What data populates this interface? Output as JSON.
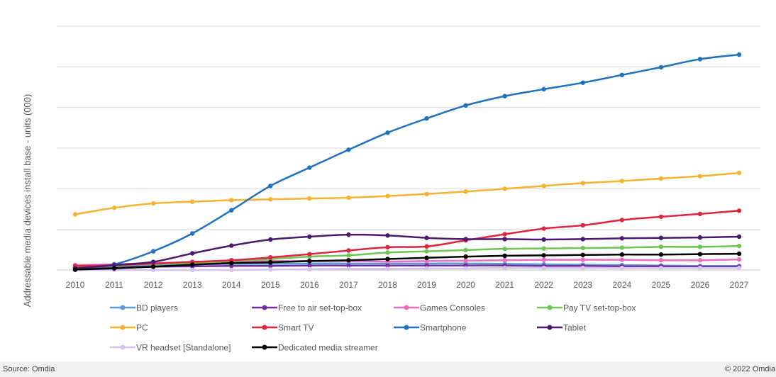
{
  "colors": {
    "grid": "#d9d9d9",
    "axis": "#bfbfbf",
    "background": "#ffffff"
  },
  "footer": {
    "source": "Source: Omdia",
    "copyright": "© 2022 Omdia"
  },
  "chart_data": {
    "type": "line",
    "title": "",
    "xlabel": "",
    "ylabel": "Addressable media devices install base - units (000)",
    "x": [
      "2010",
      "2011",
      "2012",
      "2013",
      "2014",
      "2015",
      "2016",
      "2017",
      "2018",
      "2019",
      "2020",
      "2021",
      "2022",
      "2023",
      "2024",
      "2025",
      "2026",
      "2027"
    ],
    "ylim": [
      0,
      6
    ],
    "y_ticks_labeled": false,
    "grid": true,
    "legend_position": "bottom",
    "series": [
      {
        "name": "BD players",
        "color": "#5b9bd5",
        "values": [
          0.05,
          0.09,
          0.12,
          0.14,
          0.15,
          0.15,
          0.16,
          0.16,
          0.16,
          0.16,
          0.16,
          0.15,
          0.14,
          0.13,
          0.12,
          0.11,
          0.1,
          0.1
        ]
      },
      {
        "name": "Free to air set-top-box",
        "color": "#7030a0",
        "values": [
          0.06,
          0.07,
          0.08,
          0.09,
          0.1,
          0.1,
          0.11,
          0.11,
          0.11,
          0.11,
          0.11,
          0.11,
          0.1,
          0.1,
          0.09,
          0.09,
          0.08,
          0.08
        ]
      },
      {
        "name": "Games Consoles",
        "color": "#e96dc2",
        "values": [
          0.12,
          0.14,
          0.17,
          0.19,
          0.21,
          0.22,
          0.22,
          0.22,
          0.21,
          0.22,
          0.23,
          0.24,
          0.25,
          0.25,
          0.25,
          0.24,
          0.24,
          0.26
        ]
      },
      {
        "name": "Pay TV set-top-box",
        "color": "#70c554",
        "values": [
          0.08,
          0.1,
          0.15,
          0.17,
          0.22,
          0.27,
          0.33,
          0.36,
          0.43,
          0.46,
          0.49,
          0.52,
          0.53,
          0.54,
          0.55,
          0.57,
          0.57,
          0.59
        ]
      },
      {
        "name": "PC",
        "color": "#f5b333",
        "values": [
          1.37,
          1.53,
          1.64,
          1.68,
          1.72,
          1.74,
          1.76,
          1.78,
          1.82,
          1.87,
          1.93,
          2.0,
          2.07,
          2.14,
          2.19,
          2.25,
          2.31,
          2.39
        ]
      },
      {
        "name": "Smart TV",
        "color": "#e0243f",
        "values": [
          0.1,
          0.12,
          0.16,
          0.2,
          0.24,
          0.31,
          0.39,
          0.48,
          0.56,
          0.58,
          0.73,
          0.88,
          1.02,
          1.1,
          1.23,
          1.31,
          1.38,
          1.46
        ]
      },
      {
        "name": "Smartphone",
        "color": "#1f72bd",
        "values": [
          0.02,
          0.14,
          0.46,
          0.9,
          1.47,
          2.07,
          2.52,
          2.96,
          3.38,
          3.73,
          4.05,
          4.28,
          4.45,
          4.61,
          4.8,
          4.99,
          5.19,
          5.3
        ]
      },
      {
        "name": "Tablet",
        "color": "#4b1a6e",
        "values": [
          0.04,
          0.12,
          0.2,
          0.41,
          0.6,
          0.75,
          0.82,
          0.87,
          0.85,
          0.79,
          0.76,
          0.76,
          0.75,
          0.76,
          0.78,
          0.79,
          0.8,
          0.82
        ]
      },
      {
        "name": "VR headset [Standalone]",
        "color": "#d5c3ec",
        "values": [
          0.0,
          0.0,
          0.0,
          0.0,
          0.0,
          0.01,
          0.02,
          0.03,
          0.03,
          0.04,
          0.04,
          0.05,
          0.05,
          0.05,
          0.05,
          0.05,
          0.05,
          0.05
        ]
      },
      {
        "name": "Dedicated media streamer",
        "color": "#000000",
        "values": [
          0.01,
          0.04,
          0.08,
          0.13,
          0.17,
          0.19,
          0.22,
          0.24,
          0.27,
          0.3,
          0.33,
          0.35,
          0.36,
          0.37,
          0.38,
          0.38,
          0.39,
          0.4
        ]
      }
    ]
  }
}
